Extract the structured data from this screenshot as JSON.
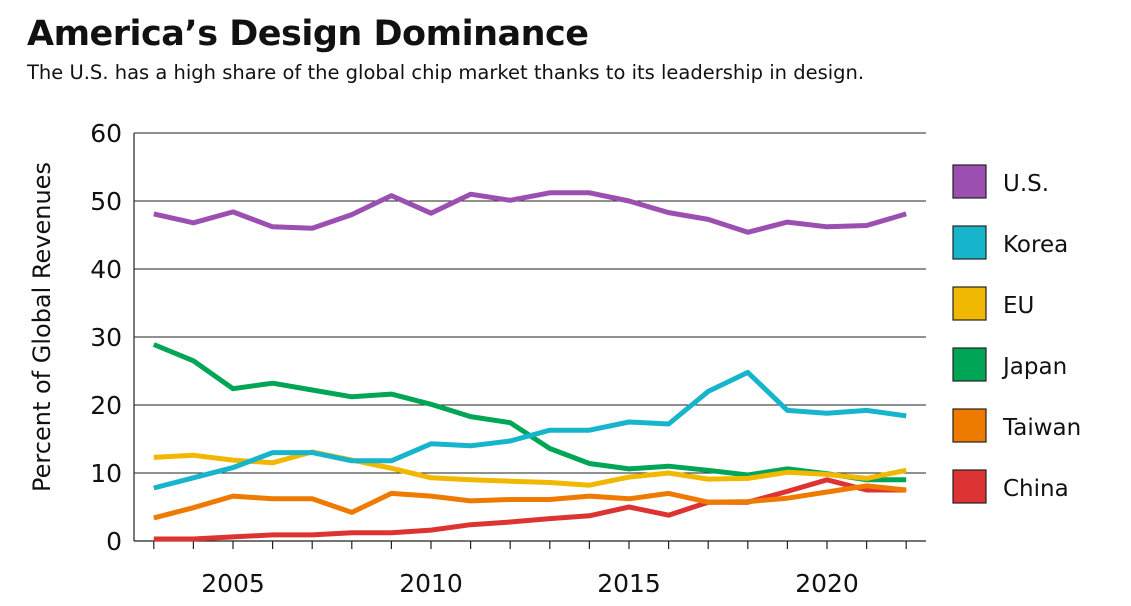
{
  "title": "America’s Design Dominance",
  "subtitle": "The U.S. has a high share of the global chip market thanks to its leadership in design.",
  "chart_data": {
    "type": "line",
    "title": "America’s Design Dominance",
    "subtitle": "The U.S. has a high share of the global chip market thanks to its leadership in design.",
    "xlabel": "",
    "ylabel": "Percent of Global Revenues",
    "x": [
      2003,
      2004,
      2005,
      2006,
      2007,
      2008,
      2009,
      2010,
      2011,
      2012,
      2013,
      2014,
      2015,
      2016,
      2017,
      2018,
      2019,
      2020,
      2021,
      2022
    ],
    "xticks": [
      2005,
      2010,
      2015,
      2020
    ],
    "yticks": [
      0,
      10,
      20,
      30,
      40,
      50,
      60
    ],
    "xlim": [
      2002.5,
      2022.5
    ],
    "ylim": [
      0,
      60
    ],
    "grid": "horizontal",
    "legend": "right",
    "series": [
      {
        "name": "U.S.",
        "color": "#9b4fb0",
        "values": [
          48.1,
          46.8,
          48.4,
          46.2,
          46.0,
          48.0,
          50.8,
          48.2,
          51.0,
          50.1,
          51.2,
          51.2,
          50.0,
          48.3,
          47.3,
          45.4,
          46.9,
          46.2,
          46.4,
          48.1
        ]
      },
      {
        "name": "Korea",
        "color": "#17b5cc",
        "values": [
          7.8,
          9.3,
          10.8,
          13.0,
          13.0,
          11.8,
          11.8,
          14.3,
          14.0,
          14.7,
          16.3,
          16.3,
          17.5,
          17.2,
          22.0,
          24.8,
          19.2,
          18.8,
          19.2,
          18.4
        ]
      },
      {
        "name": "EU",
        "color": "#f0b800",
        "values": [
          12.3,
          12.6,
          11.9,
          11.5,
          13.1,
          11.9,
          10.7,
          9.3,
          9.0,
          8.8,
          8.6,
          8.2,
          9.4,
          10.0,
          9.1,
          9.2,
          10.1,
          9.8,
          9.2,
          10.4
        ]
      },
      {
        "name": "Japan",
        "color": "#00a656",
        "values": [
          28.9,
          26.5,
          22.4,
          23.2,
          22.2,
          21.2,
          21.6,
          20.1,
          18.3,
          17.4,
          13.6,
          11.4,
          10.6,
          11.0,
          10.4,
          9.7,
          10.6,
          9.9,
          9.0,
          9.0
        ]
      },
      {
        "name": "Taiwan",
        "color": "#ee7a00",
        "values": [
          3.4,
          4.9,
          6.6,
          6.2,
          6.2,
          4.2,
          7.0,
          6.6,
          5.9,
          6.1,
          6.1,
          6.6,
          6.2,
          7.0,
          5.7,
          5.8,
          6.3,
          7.2,
          8.1,
          7.5
        ]
      },
      {
        "name": "China",
        "color": "#dd3333",
        "values": [
          0.3,
          0.3,
          0.6,
          0.9,
          0.9,
          1.2,
          1.2,
          1.6,
          2.4,
          2.8,
          3.3,
          3.7,
          5.0,
          3.8,
          5.7,
          5.7,
          7.3,
          9.0,
          7.5,
          7.5
        ]
      }
    ]
  }
}
